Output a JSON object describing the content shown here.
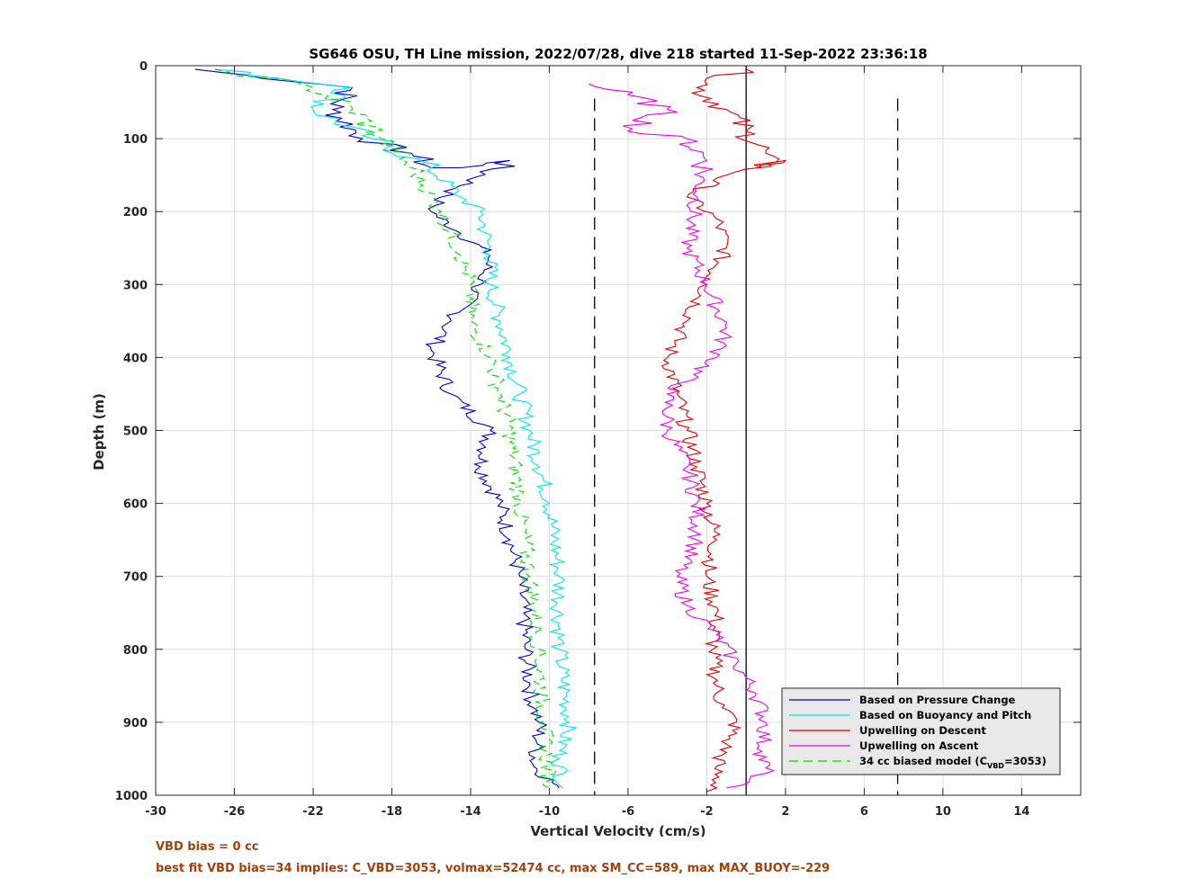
{
  "chart_data": {
    "type": "line",
    "title": "SG646 OSU, TH Line mission, 2022/07/28, dive 218 started 11-Sep-2022 23:36:18",
    "xlabel": "Vertical Velocity (cm/s)",
    "ylabel": "Depth (m)",
    "xlim": [
      -30,
      17
    ],
    "ylim": [
      0,
      1000
    ],
    "y_reversed": true,
    "xticks": [
      "-30",
      "-26",
      "-22",
      "-18",
      "-14",
      "-10",
      "-6",
      "-2",
      "2",
      "6",
      "10",
      "14"
    ],
    "xtick_values": [
      -30,
      -26,
      -22,
      -18,
      -14,
      -10,
      -6,
      -2,
      2,
      6,
      10,
      14
    ],
    "yticks": [
      "0",
      "100",
      "200",
      "300",
      "400",
      "500",
      "600",
      "700",
      "800",
      "900",
      "1000"
    ],
    "ytick_values": [
      0,
      100,
      200,
      300,
      400,
      500,
      600,
      700,
      800,
      900,
      1000
    ],
    "grid": true,
    "legend_position": "bottom-right",
    "reference_lines": [
      {
        "x": -7.7,
        "style": "dashed",
        "color": "#000000"
      },
      {
        "x": 0,
        "style": "solid",
        "color": "#000000"
      },
      {
        "x": 7.7,
        "style": "dashed",
        "color": "#000000"
      }
    ],
    "series": [
      {
        "name": "Based on Pressure Change",
        "color": "#0000cd",
        "style": "solid",
        "x": [
          -28,
          -20,
          -21,
          -19.5,
          -17,
          -16,
          -14.5,
          -12,
          -15.5,
          -16,
          -14.5,
          -13,
          -13.5,
          -15,
          -16,
          -15,
          -13,
          -13.5,
          -12.5,
          -12,
          -11.5,
          -11.3,
          -11.2,
          -11,
          -10.8,
          -10.5,
          -10.6,
          -10.8,
          -9.5
        ],
        "y": [
          5,
          30,
          60,
          100,
          120,
          140,
          140,
          130,
          180,
          200,
          230,
          260,
          300,
          350,
          390,
          450,
          500,
          550,
          600,
          650,
          700,
          750,
          800,
          850,
          880,
          900,
          930,
          960,
          990
        ]
      },
      {
        "name": "Based on Buoyancy and Pitch",
        "color": "#00e5ee",
        "style": "solid",
        "x": [
          -27,
          -20,
          -22,
          -19,
          -16,
          -14.5,
          -13.5,
          -13,
          -13,
          -12.5,
          -12,
          -11.5,
          -11,
          -10.5,
          -10,
          -9.5,
          -9.5,
          -9,
          -9.5,
          -9.3
        ],
        "y": [
          5,
          30,
          60,
          100,
          140,
          180,
          200,
          260,
          300,
          350,
          400,
          450,
          500,
          550,
          600,
          700,
          800,
          900,
          950,
          990
        ]
      },
      {
        "name": "Upwelling on Descent",
        "color": "#dd0000",
        "style": "solid",
        "x": [
          0,
          -2.5,
          -1,
          0,
          1,
          0.8,
          2,
          -1,
          -3,
          -1.5,
          -1,
          -2,
          -3,
          -4,
          -3.5,
          -3,
          -2.5,
          -2,
          -1.5,
          -2,
          -1.5,
          -1.7,
          -1.5,
          -1.2,
          -0.5,
          -1,
          -1.5,
          -1.5,
          -2
        ],
        "y": [
          5,
          30,
          60,
          90,
          120,
          140,
          130,
          150,
          180,
          210,
          250,
          300,
          350,
          400,
          450,
          500,
          550,
          600,
          650,
          700,
          750,
          800,
          850,
          880,
          900,
          930,
          960,
          990,
          995
        ]
      },
      {
        "name": "Upwelling on Ascent",
        "color": "#ee00ee",
        "style": "solid",
        "x": [
          -8,
          -6,
          -4,
          -6,
          -3,
          -2,
          -2.5,
          -3,
          -2,
          -1,
          -1.5,
          -4,
          -4,
          -3,
          -2.5,
          -2.5,
          -3.5,
          -3,
          -1.5,
          -0.5,
          0.5,
          1,
          0.8,
          1,
          -1
        ],
        "y": [
          25,
          40,
          60,
          90,
          100,
          130,
          180,
          250,
          300,
          360,
          400,
          450,
          500,
          550,
          600,
          650,
          700,
          740,
          780,
          820,
          860,
          900,
          940,
          970,
          990
        ]
      },
      {
        "name": "34 cc biased model (C_VBD=3053)",
        "color": "#00dd00",
        "style": "dashed",
        "x": [
          -27,
          -22,
          -20,
          -18.5,
          -17,
          -15.5,
          -14.5,
          -14,
          -14,
          -13,
          -12.5,
          -12,
          -11.5,
          -11,
          -10.5,
          -10.3,
          -10
        ],
        "y": [
          5,
          30,
          60,
          100,
          140,
          200,
          260,
          300,
          350,
          400,
          450,
          500,
          600,
          700,
          800,
          900,
          990
        ]
      }
    ]
  },
  "legend": {
    "items": [
      {
        "label": "Based on Pressure Change",
        "color": "#0000cd",
        "dash": ""
      },
      {
        "label": "Based on Buoyancy and Pitch",
        "color": "#00e5ee",
        "dash": ""
      },
      {
        "label": "Upwelling on Descent",
        "color": "#dd0000",
        "dash": ""
      },
      {
        "label": "Upwelling on Ascent",
        "color": "#ee00ee",
        "dash": ""
      },
      {
        "label": "34 cc biased model (C",
        "sub": "VBD",
        "suffix": "=3053)",
        "color": "#00dd00",
        "dash": "10,6"
      }
    ]
  },
  "footnotes": {
    "line1": "VBD bias = 0 cc",
    "line2": "best fit VBD bias=34 implies: C_VBD=3053, volmax=52474 cc, max SM_CC=589, max MAX_BUOY=-229"
  },
  "colors": {
    "footnote": "#a0410d",
    "grid": "#dcdcdc",
    "axis": "#262626"
  }
}
